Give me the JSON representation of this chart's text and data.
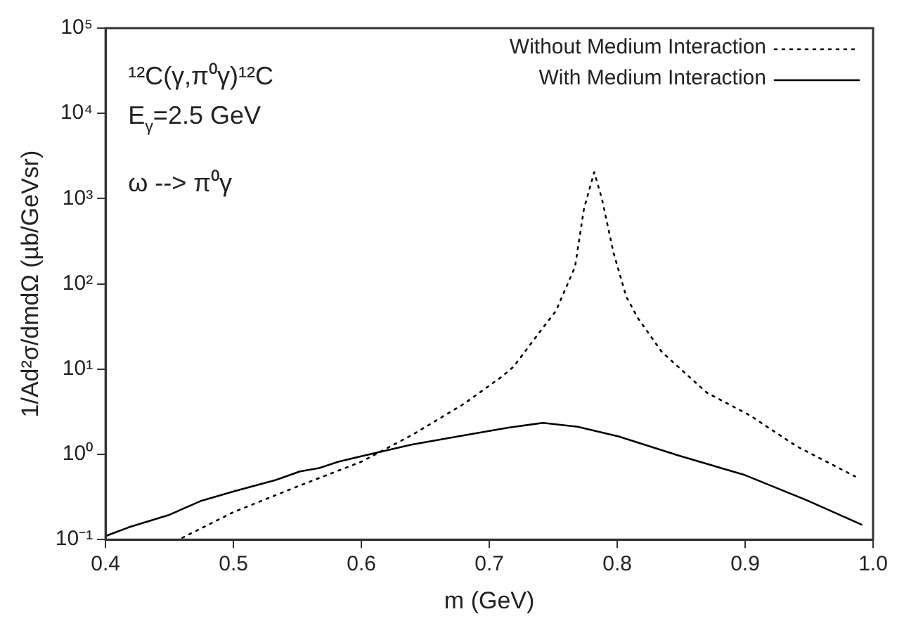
{
  "chart_data": {
    "type": "line",
    "xlabel": "m (GeV)",
    "ylabel": "1/Ad²σ/dmdΩ (µb/GeVsr)",
    "annotations": [
      "¹²C(γ,π⁰γ)¹²C",
      "E$_{γ}$=2.5 GeV",
      "ω --> π⁰γ"
    ],
    "xlim": [
      0.4,
      1.0
    ],
    "xticks": [
      0.4,
      0.5,
      0.6,
      0.7,
      0.8,
      0.9,
      {
        "value": 1,
        "label": "1.0"
      }
    ],
    "ylim": [
      0.1,
      100000
    ],
    "yticks": [
      {
        "value": 0.1,
        "label": "10⁻¹"
      },
      {
        "value": 1,
        "label": "10⁰"
      },
      {
        "value": 10,
        "label": "10¹"
      },
      {
        "value": 100,
        "label": "10²"
      },
      {
        "value": 1000,
        "label": "10³"
      },
      {
        "value": 10000,
        "label": "10⁴"
      },
      {
        "value": 100000,
        "label": "10⁵"
      }
    ],
    "log": "y",
    "grid": false,
    "legend": "top right",
    "marker": "none",
    "series": [
      {
        "name": "Without Medium Interaction",
        "color": "#000000",
        "line_style": "dotted",
        "x": [
          0.46,
          0.5,
          0.55,
          0.6,
          0.64,
          0.68,
          0.71,
          0.719,
          0.74,
          0.752,
          0.767,
          0.774,
          0.782,
          0.788,
          0.797,
          0.807,
          0.816,
          0.835,
          0.87,
          0.904,
          0.94,
          0.986
        ],
        "values": [
          0.105,
          0.21,
          0.42,
          0.82,
          1.7,
          3.9,
          8.2,
          10.7,
          28,
          48,
          158,
          760,
          2040,
          1000,
          235,
          71,
          40,
          15.8,
          5.3,
          2.85,
          1.25,
          0.55
        ]
      },
      {
        "name": "With Medium Interaction",
        "color": "#000000",
        "line_style": "solid",
        "x": [
          0.4,
          0.418,
          0.449,
          0.475,
          0.501,
          0.533,
          0.552,
          0.567,
          0.582,
          0.601,
          0.639,
          0.677,
          0.715,
          0.742,
          0.769,
          0.801,
          0.849,
          0.9,
          0.948,
          0.991
        ],
        "values": [
          0.11,
          0.139,
          0.193,
          0.286,
          0.37,
          0.5,
          0.63,
          0.69,
          0.82,
          0.96,
          1.3,
          1.64,
          2.06,
          2.34,
          2.11,
          1.62,
          0.96,
          0.57,
          0.29,
          0.15
        ]
      }
    ]
  }
}
